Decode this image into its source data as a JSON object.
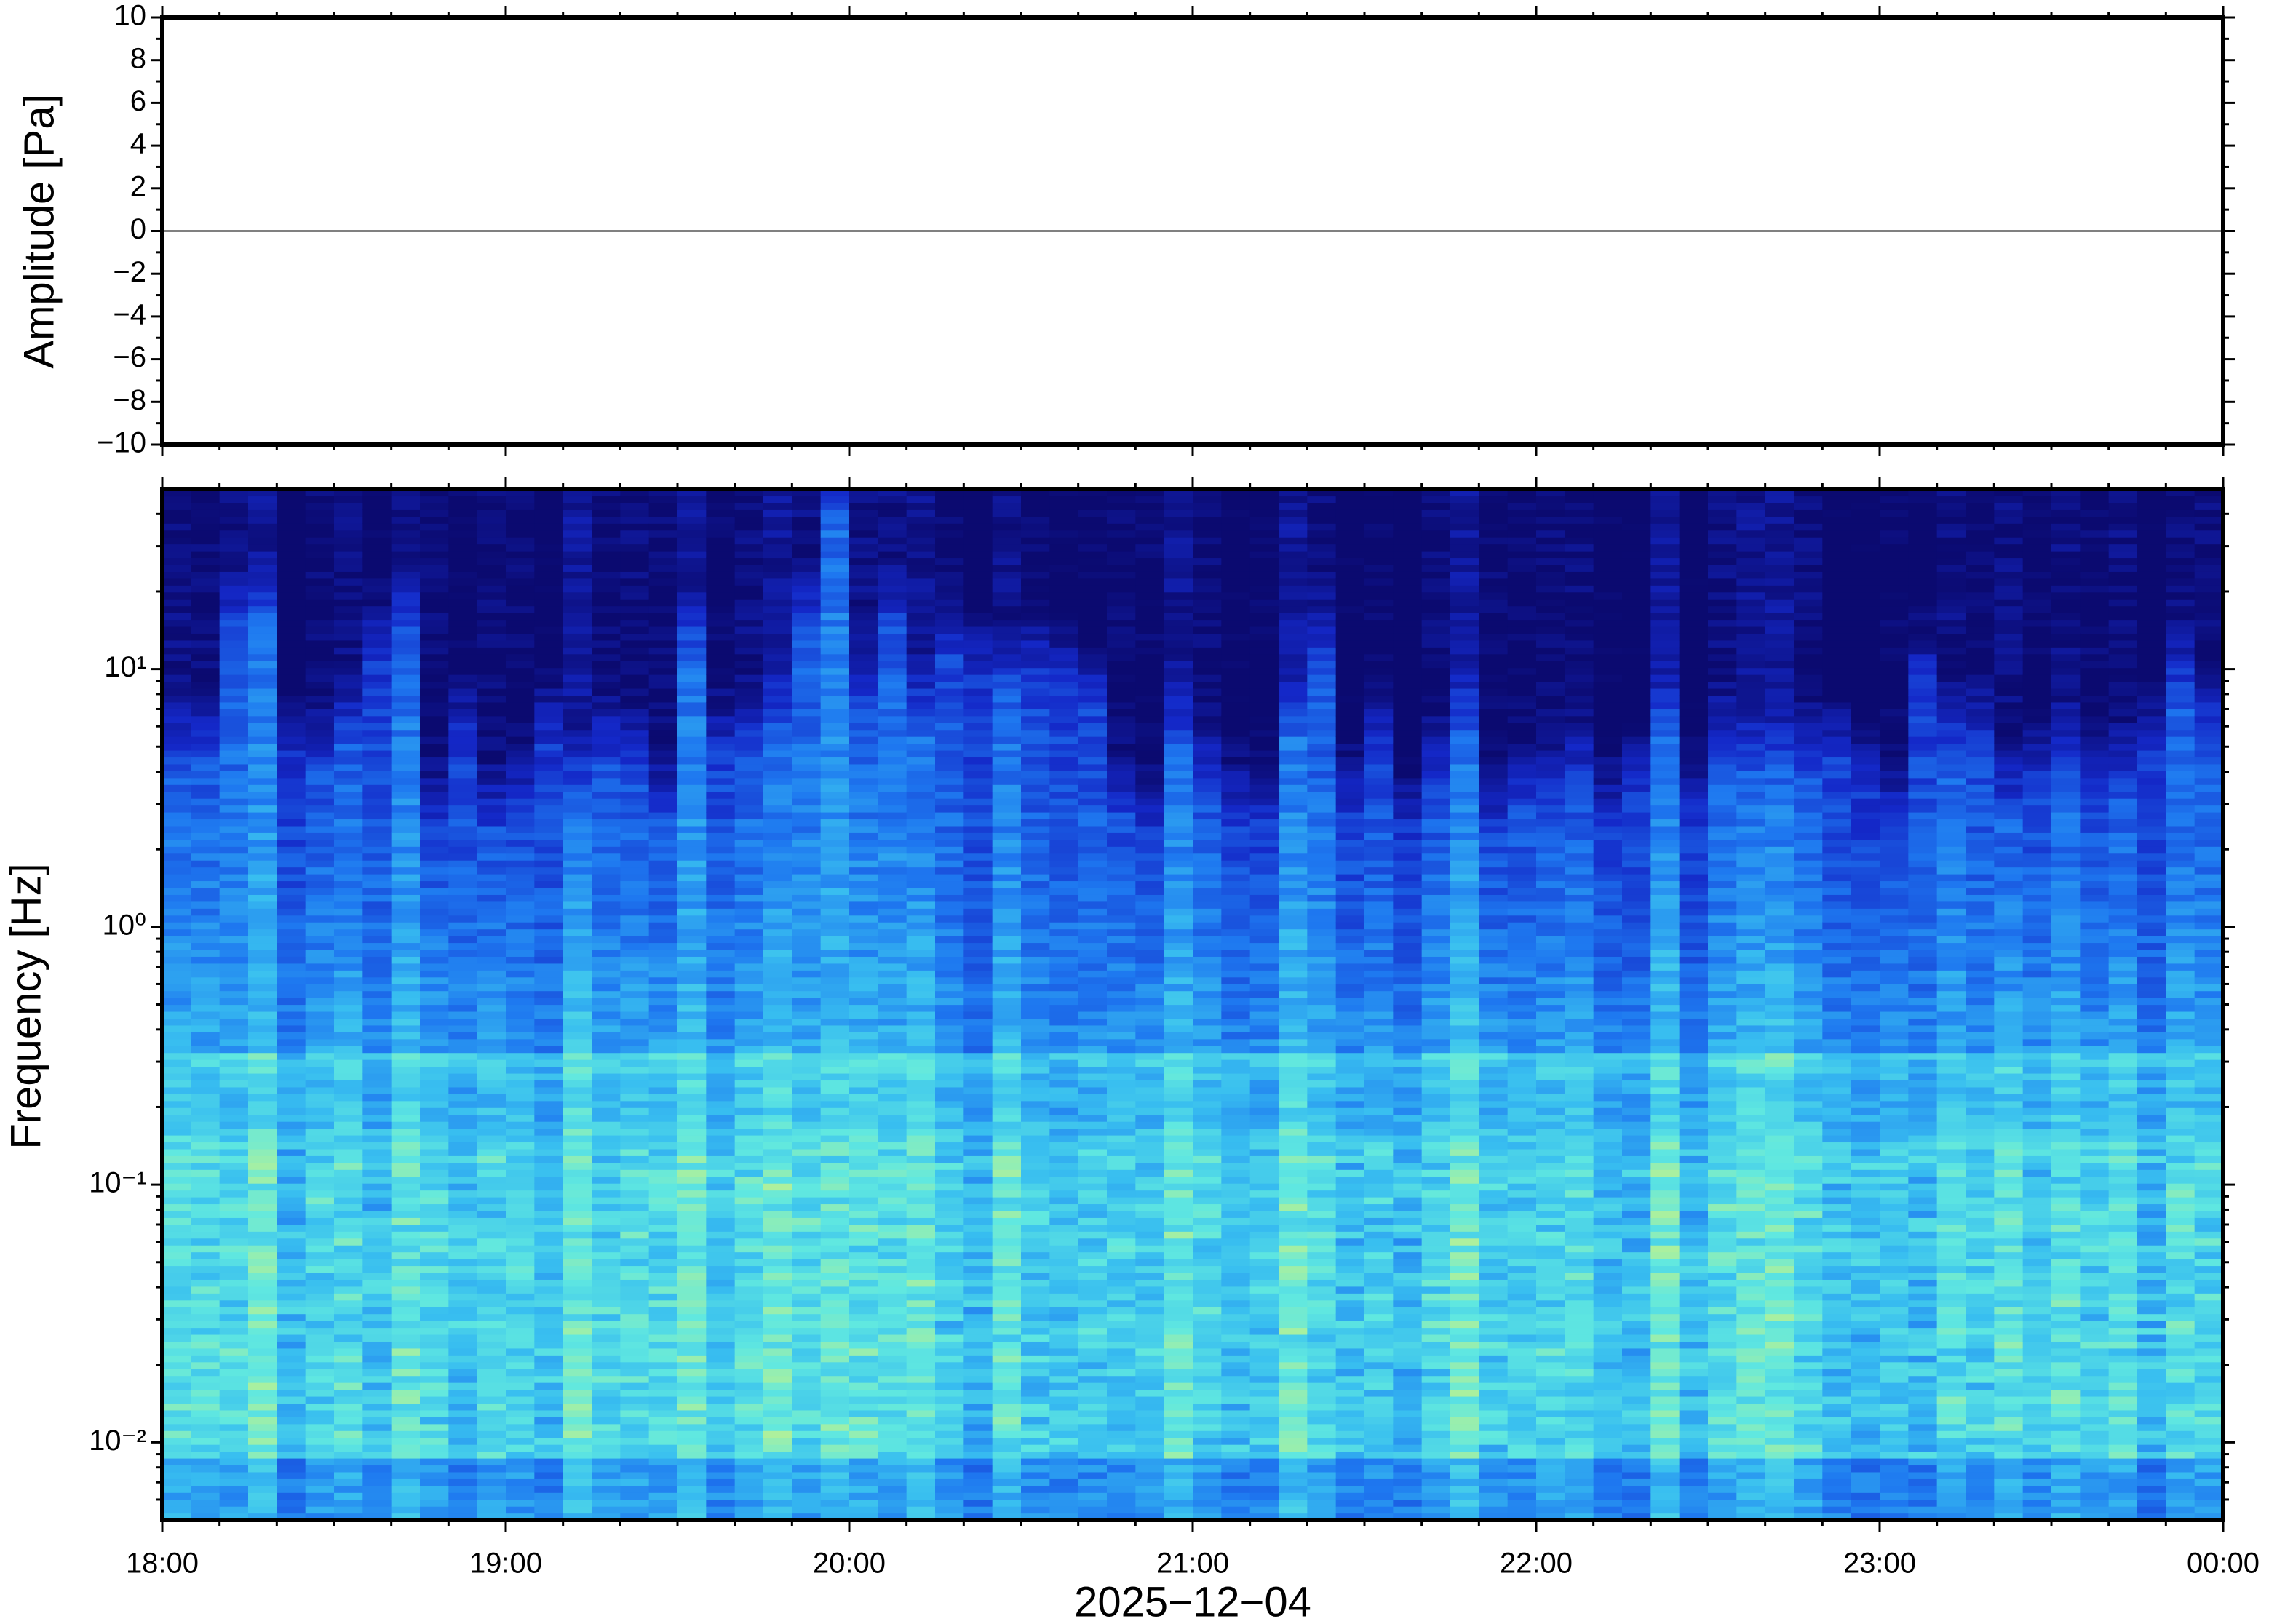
{
  "chart_data": [
    {
      "type": "line",
      "ylabel": "Amplitude [Pa]",
      "x": [
        18,
        19,
        20,
        21,
        22,
        23,
        24
      ],
      "values": [
        0,
        0,
        0,
        0,
        0,
        0,
        0
      ],
      "color": "#000000",
      "xlim": [
        18,
        24
      ],
      "ylim": [
        -10,
        10
      ],
      "yticks": [
        {
          "value": -10,
          "label": "−10"
        },
        {
          "value": -8,
          "label": "−8"
        },
        {
          "value": -6,
          "label": "−6"
        },
        {
          "value": -4,
          "label": "−4"
        },
        {
          "value": -2,
          "label": "−2"
        },
        0,
        2,
        4,
        6,
        8,
        10
      ]
    },
    {
      "type": "spectrogram",
      "ylabel": "Frequency [Hz]",
      "xlabel": "2025−12−04",
      "xlim": [
        18,
        24
      ],
      "xticks": [
        {
          "value": 18,
          "label": "18:00"
        },
        {
          "value": 19,
          "label": "19:00"
        },
        {
          "value": 20,
          "label": "20:00"
        },
        {
          "value": 21,
          "label": "21:00"
        },
        {
          "value": 22,
          "label": "22:00"
        },
        {
          "value": 23,
          "label": "23:00"
        },
        {
          "value": 24,
          "label": "00:00"
        }
      ],
      "ylim": [
        0.005,
        50
      ],
      "ylog": true,
      "yticks": [
        {
          "value": 0.01,
          "label": "10⁻²"
        },
        {
          "value": 0.1,
          "label": "10⁻¹"
        },
        {
          "value": 1,
          "label": "10⁰"
        },
        {
          "value": 10,
          "label": "10¹"
        }
      ]
    }
  ]
}
